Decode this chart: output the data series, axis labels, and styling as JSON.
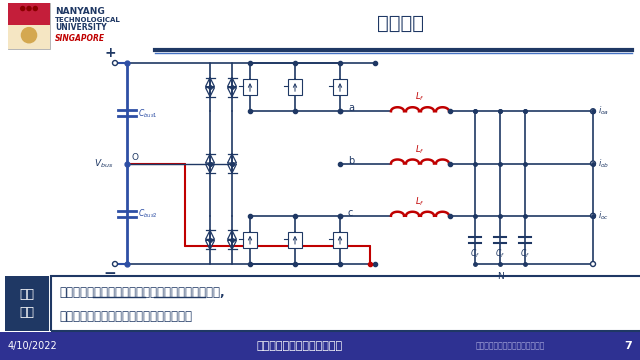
{
  "title": "研究目标",
  "bg_color": "#ffffff",
  "header_line_color": "#1f3864",
  "header_line_color2": "#4472c4",
  "ntu_text_color": "#1f3864",
  "singapore_color": "#c00000",
  "footer_bg": "#2e3192",
  "footer_text_color": "#ffffff",
  "footer_left": "4/10/2022",
  "footer_center": "中国电工技术学会青年云沙龙",
  "footer_right": "中国电工技术学会新媒体平台发布",
  "footer_page": "7",
  "box_label": "研究\n目标",
  "box_bg": "#1f3864",
  "box_text_color": "#ffffff",
  "research_text_line1": "如何减小交流滤波电感和直流分裂电容的体积和重量,",
  "research_text_line2": "以提高三相四线三电平逆变器的功率密度。",
  "circuit_color": "#1f3864",
  "red_color": "#c00000",
  "blue_color": "#2e4fa5"
}
